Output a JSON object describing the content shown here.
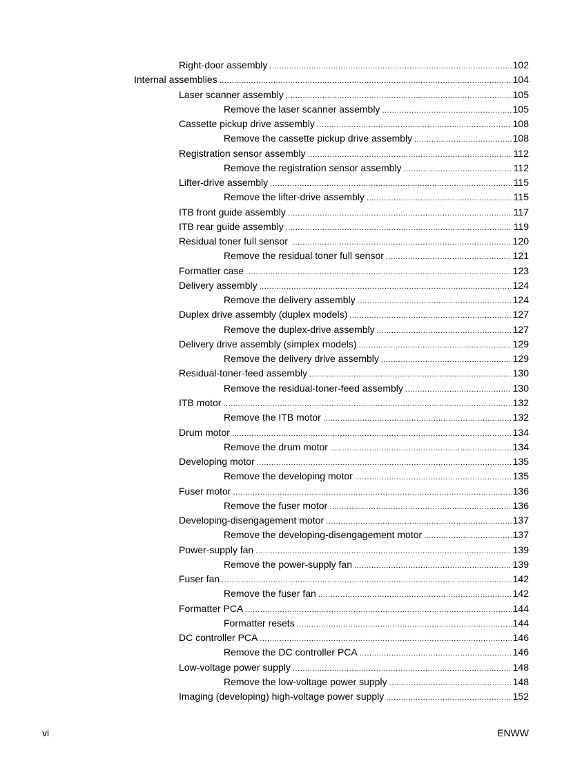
{
  "entries": [
    {
      "level": 1,
      "title": "Right-door assembly",
      "page": "102"
    },
    {
      "level": 0,
      "title": "Internal assemblies",
      "page": "104"
    },
    {
      "level": 1,
      "title": "Laser scanner assembly",
      "page": "105"
    },
    {
      "level": 2,
      "title": "Remove the laser scanner assembly",
      "page": "105"
    },
    {
      "level": 1,
      "title": "Cassette pickup drive assembly",
      "page": "108"
    },
    {
      "level": 2,
      "title": "Remove the cassette pickup drive assembly",
      "page": "108"
    },
    {
      "level": 1,
      "title": "Registration sensor assembly",
      "page": "112"
    },
    {
      "level": 2,
      "title": "Remove the registration sensor assembly",
      "page": "112"
    },
    {
      "level": 1,
      "title": "Lifter-drive assembly",
      "page": "115"
    },
    {
      "level": 2,
      "title": "Remove the lifter-drive assembly",
      "page": "115"
    },
    {
      "level": 1,
      "title": "ITB front guide assembly",
      "page": "117"
    },
    {
      "level": 1,
      "title": "ITB rear guide assembly",
      "page": "119"
    },
    {
      "level": 1,
      "title": "Residual toner full sensor ",
      "page": "120"
    },
    {
      "level": 2,
      "title": "Remove the residual toner full sensor",
      "page": "121"
    },
    {
      "level": 1,
      "title": "Formatter case",
      "page": "123"
    },
    {
      "level": 1,
      "title": "Delivery assembly",
      "page": "124"
    },
    {
      "level": 2,
      "title": "Remove the delivery assembly",
      "page": "124"
    },
    {
      "level": 1,
      "title": "Duplex drive assembly (duplex models)",
      "page": "127"
    },
    {
      "level": 2,
      "title": "Remove the duplex-drive assembly",
      "page": "127"
    },
    {
      "level": 1,
      "title": "Delivery drive assembly (simplex models)",
      "page": "129"
    },
    {
      "level": 2,
      "title": "Remove the delivery drive assembly",
      "page": "129"
    },
    {
      "level": 1,
      "title": "Residual-toner-feed assembly",
      "page": "130"
    },
    {
      "level": 2,
      "title": "Remove the residual-toner-feed assembly",
      "page": "130"
    },
    {
      "level": 1,
      "title": "ITB motor",
      "page": "132"
    },
    {
      "level": 2,
      "title": "Remove the ITB motor",
      "page": "132"
    },
    {
      "level": 1,
      "title": "Drum motor",
      "page": "134"
    },
    {
      "level": 2,
      "title": "Remove the drum motor",
      "page": "134"
    },
    {
      "level": 1,
      "title": "Developing motor",
      "page": "135"
    },
    {
      "level": 2,
      "title": "Remove the developing motor",
      "page": "135"
    },
    {
      "level": 1,
      "title": "Fuser motor",
      "page": "136"
    },
    {
      "level": 2,
      "title": "Remove the fuser motor",
      "page": "136"
    },
    {
      "level": 1,
      "title": "Developing-disengagement motor",
      "page": "137"
    },
    {
      "level": 2,
      "title": "Remove the developing-disengagement motor",
      "page": "137"
    },
    {
      "level": 1,
      "title": "Power-supply fan",
      "page": "139"
    },
    {
      "level": 2,
      "title": "Remove the power-supply fan",
      "page": "139"
    },
    {
      "level": 1,
      "title": "Fuser fan",
      "page": "142"
    },
    {
      "level": 2,
      "title": "Remove the fuser fan",
      "page": "142"
    },
    {
      "level": 1,
      "title": "Formatter PCA",
      "page": "144"
    },
    {
      "level": 2,
      "title": "Formatter resets",
      "page": "144"
    },
    {
      "level": 1,
      "title": "DC controller PCA",
      "page": "146"
    },
    {
      "level": 2,
      "title": "Remove the DC controller PCA",
      "page": "146"
    },
    {
      "level": 1,
      "title": "Low-voltage power supply",
      "page": "148"
    },
    {
      "level": 2,
      "title": "Remove the low-voltage power supply",
      "page": "148"
    },
    {
      "level": 1,
      "title": "Imaging (developing) high-voltage power supply",
      "page": "152"
    }
  ],
  "footer": {
    "page_number": "vi",
    "label": "ENWW"
  }
}
